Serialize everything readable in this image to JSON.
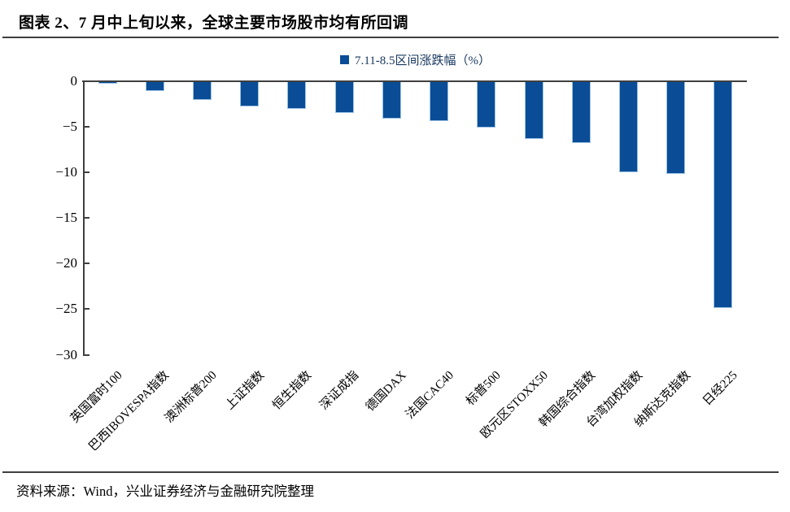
{
  "title": "图表 2、7 月中上旬以来，全球主要市场股市均有所回调",
  "source": "资料来源：Wind，兴业证券经济与金融研究院整理",
  "legend": {
    "label": "7.11-8.5区间涨跌幅（%）",
    "marker_color": "#0a4d96"
  },
  "colors": {
    "bar": "#0a4d96",
    "bar_border": "#9dc3e6",
    "axis": "#3f3f3f",
    "legend_text": "#17375e",
    "divider": "#3f3f3f"
  },
  "chart_data": {
    "type": "bar",
    "title": "7.11-8.5区间涨跌幅（%）",
    "categories": [
      "英国富时100",
      "巴西IBOVESPA指数",
      "澳洲标普200",
      "上证指数",
      "恒生指数",
      "深证成指",
      "德国DAX",
      "法国CAC40",
      "标普500",
      "欧元区STOXX50",
      "韩国综合指数",
      "台湾加权指数",
      "纳斯达克指数",
      "日经225"
    ],
    "values": [
      -0.3,
      -1.1,
      -2.1,
      -2.8,
      -3.1,
      -3.5,
      -4.1,
      -4.4,
      -5.1,
      -6.4,
      -6.8,
      -10.0,
      -10.2,
      -24.9
    ],
    "xlabel": "",
    "ylabel": "",
    "ylim": [
      -30,
      0
    ],
    "yticks": [
      0,
      -5,
      -10,
      -15,
      -20,
      -25,
      -30
    ],
    "grid": false,
    "legend_position": "top-center",
    "bar_color": "#0a4d96"
  }
}
